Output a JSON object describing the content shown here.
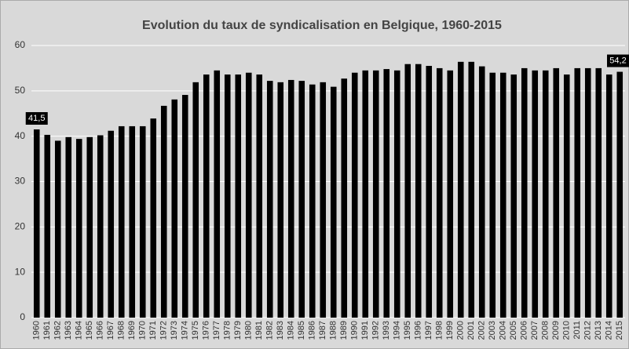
{
  "chart_data": {
    "type": "bar",
    "title": "Evolution du taux de syndicalisation en Belgique, 1960-2015",
    "categories": [
      "1960",
      "1961",
      "1962",
      "1963",
      "1964",
      "1965",
      "1966",
      "1967",
      "1968",
      "1969",
      "1970",
      "1971",
      "1972",
      "1973",
      "1974",
      "1975",
      "1976",
      "1977",
      "1978",
      "1979",
      "1980",
      "1981",
      "1982",
      "1983",
      "1984",
      "1985",
      "1986",
      "1987",
      "1988",
      "1989",
      "1990",
      "1991",
      "1992",
      "1993",
      "1994",
      "1995",
      "1996",
      "1997",
      "1998",
      "1999",
      "2000",
      "2001",
      "2002",
      "2003",
      "2004",
      "2005",
      "2006",
      "2007",
      "2008",
      "2009",
      "2010",
      "2011",
      "2012",
      "2013",
      "2014",
      "2015"
    ],
    "values": [
      41.5,
      40.3,
      39,
      39.8,
      39.4,
      39.8,
      40.2,
      41.2,
      42.2,
      42.2,
      42.2,
      43.9,
      46.7,
      48.1,
      49.1,
      51.9,
      53.6,
      54.5,
      53.6,
      53.6,
      54,
      53.6,
      52.2,
      51.9,
      52.4,
      52.2,
      51.4,
      51.9,
      50.9,
      52.7,
      54,
      54.5,
      54.5,
      54.8,
      54.5,
      55.9,
      55.9,
      55.5,
      55,
      54.5,
      56.4,
      56.4,
      55.4,
      54,
      54,
      53.6,
      55,
      54.5,
      54.5,
      55,
      53.6,
      55,
      55,
      55,
      53.6,
      54.2
    ],
    "value_labels": [
      "41,5",
      null,
      null,
      null,
      null,
      null,
      null,
      null,
      null,
      null,
      null,
      null,
      null,
      null,
      null,
      null,
      null,
      null,
      null,
      null,
      null,
      null,
      null,
      null,
      null,
      null,
      null,
      null,
      null,
      null,
      null,
      null,
      null,
      null,
      null,
      null,
      null,
      null,
      null,
      null,
      null,
      null,
      null,
      null,
      null,
      null,
      null,
      null,
      null,
      null,
      null,
      null,
      null,
      null,
      null,
      "54,2"
    ],
    "color": "#000000",
    "ylim": [
      0,
      60
    ],
    "yticks": [
      0,
      10,
      20,
      30,
      40,
      50,
      60
    ],
    "grid": true
  }
}
